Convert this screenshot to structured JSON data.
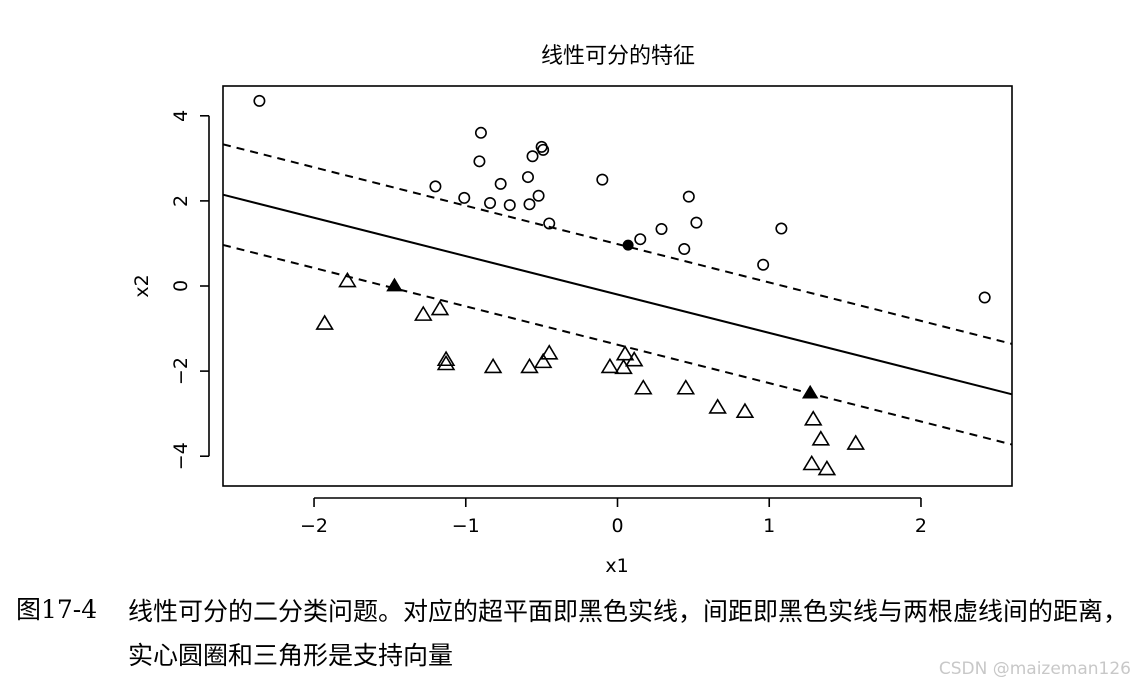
{
  "chart_data": {
    "type": "scatter",
    "title": "线性可分的特征",
    "xlabel": "x1",
    "ylabel": "x2",
    "xlim": [
      -2.6,
      2.6
    ],
    "ylim": [
      -4.7,
      4.7
    ],
    "xticks": [
      -2,
      -1,
      0,
      1,
      2
    ],
    "yticks": [
      -4,
      -2,
      0,
      2,
      4
    ],
    "xtick_labels": [
      "−2",
      "−1",
      "0",
      "1",
      "2"
    ],
    "ytick_labels": [
      "−4",
      "−2",
      "0",
      "2",
      "4"
    ],
    "grid": false,
    "legend": "none",
    "circles": [
      [
        -2.36,
        4.35
      ],
      [
        -0.9,
        3.6
      ],
      [
        -0.91,
        2.93
      ],
      [
        -0.5,
        3.27
      ],
      [
        -0.49,
        3.2
      ],
      [
        -0.56,
        3.05
      ],
      [
        -0.59,
        2.56
      ],
      [
        -1.2,
        2.34
      ],
      [
        -0.77,
        2.4
      ],
      [
        -0.1,
        2.5
      ],
      [
        -1.01,
        2.07
      ],
      [
        -0.84,
        1.95
      ],
      [
        -0.71,
        1.9
      ],
      [
        -0.58,
        1.92
      ],
      [
        -0.52,
        2.12
      ],
      [
        0.47,
        2.1
      ],
      [
        -0.45,
        1.47
      ],
      [
        0.52,
        1.49
      ],
      [
        0.29,
        1.34
      ],
      [
        0.15,
        1.1
      ],
      [
        0.44,
        0.87
      ],
      [
        1.08,
        1.35
      ],
      [
        0.96,
        0.5
      ],
      [
        2.42,
        -0.27
      ]
    ],
    "triangles": [
      [
        -1.78,
        0.12
      ],
      [
        -1.93,
        -0.88
      ],
      [
        -1.28,
        -0.67
      ],
      [
        -1.17,
        -0.54
      ],
      [
        -1.13,
        -1.73
      ],
      [
        -1.13,
        -1.83
      ],
      [
        -0.82,
        -1.9
      ],
      [
        -0.58,
        -1.9
      ],
      [
        -0.49,
        -1.78
      ],
      [
        -0.45,
        -1.58
      ],
      [
        -0.05,
        -1.9
      ],
      [
        0.05,
        -1.6
      ],
      [
        0.04,
        -1.92
      ],
      [
        0.11,
        -1.74
      ],
      [
        0.17,
        -2.4
      ],
      [
        0.45,
        -2.4
      ],
      [
        0.66,
        -2.85
      ],
      [
        0.84,
        -2.95
      ],
      [
        1.29,
        -3.13
      ],
      [
        1.34,
        -3.6
      ],
      [
        1.57,
        -3.7
      ],
      [
        1.28,
        -4.18
      ],
      [
        1.38,
        -4.3
      ]
    ],
    "support_vectors_circle": [
      [
        0.07,
        0.96
      ]
    ],
    "support_vectors_triangle": [
      [
        -1.47,
        0.01
      ],
      [
        1.27,
        -2.51
      ]
    ],
    "decision_line": {
      "slope": -0.902,
      "intercept": -0.2
    },
    "margin_upper": {
      "slope": -0.902,
      "intercept": 0.985
    },
    "margin_lower": {
      "slope": -0.902,
      "intercept": -1.38
    }
  },
  "caption": {
    "label": "图17-4",
    "text": "线性可分的二分类问题。对应的超平面即黑色实线，间距即黑色实线与两根虚线间的距离，实心圆圈和三角形是支持向量"
  },
  "watermark": "CSDN @maizeman126"
}
